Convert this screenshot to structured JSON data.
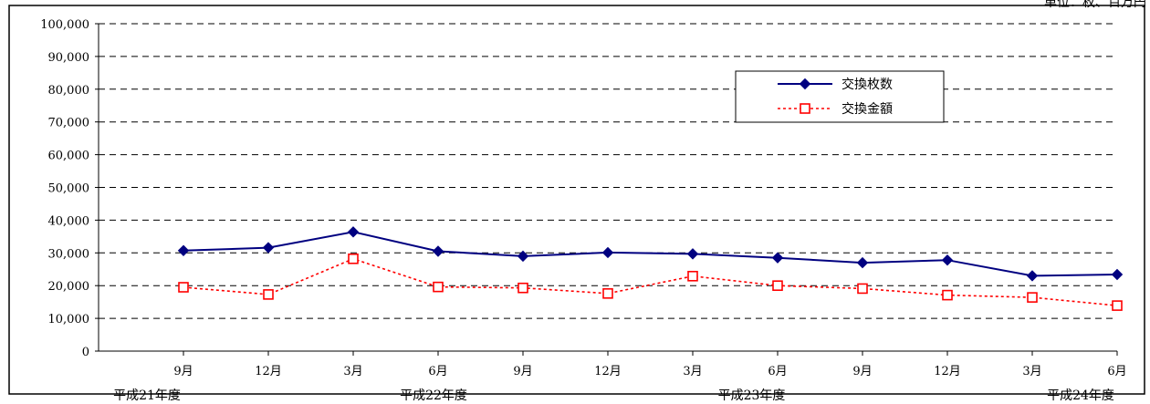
{
  "header": {
    "title_fragment": "",
    "unit_fragment": "単位：枚、百万円"
  },
  "chart_data": {
    "type": "line",
    "categories": [
      "9月",
      "12月",
      "3月",
      "6月",
      "9月",
      "12月",
      "3月",
      "6月",
      "9月",
      "12月",
      "3月",
      "6月"
    ],
    "fiscal_year_groups": [
      {
        "label": "平成21年度",
        "from": 0,
        "to": 2
      },
      {
        "label": "平成22年度",
        "from": 3,
        "to": 6
      },
      {
        "label": "平成23年度",
        "from": 7,
        "to": 10
      },
      {
        "label": "平成24年度",
        "from": 11,
        "to": 11
      }
    ],
    "series": [
      {
        "name": "交換枚数",
        "color": "#000080",
        "line": "solid",
        "marker": "diamond",
        "values": [
          30700,
          31600,
          36400,
          30500,
          29000,
          30100,
          29700,
          28500,
          27000,
          27800,
          23000,
          23400
        ]
      },
      {
        "name": "交換金額",
        "color": "#ff0000",
        "line": "dotted",
        "marker": "square-open",
        "values": [
          19500,
          17300,
          28200,
          19600,
          19300,
          17600,
          22900,
          20000,
          19100,
          17100,
          16400,
          13900
        ]
      }
    ],
    "y_ticks": [
      "0",
      "10,000",
      "20,000",
      "30,000",
      "40,000",
      "50,000",
      "60,000",
      "70,000",
      "80,000",
      "90,000",
      "100,000"
    ],
    "ylim": [
      0,
      100000
    ],
    "ystep": 10000,
    "grid": "dashed-horizontal",
    "legend_position": "top-right"
  }
}
